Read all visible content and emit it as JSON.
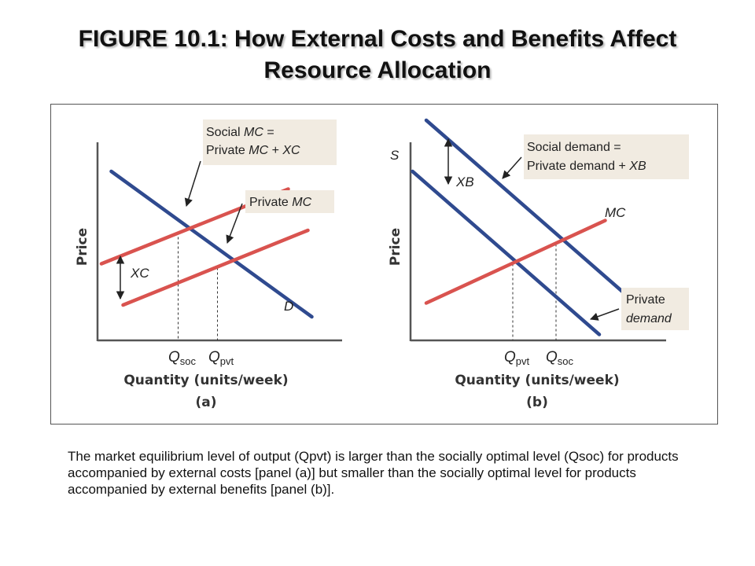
{
  "title": {
    "line1": "FIGURE 10.1: How External Costs and Benefits Affect",
    "line2": "Resource Allocation"
  },
  "caption": "The market equilibrium level of output (Qpvt) is larger than the socially optimal level (Qsoc) for products accompanied by external costs [panel (a)] but smaller than the socially optimal level for products accompanied by external benefits [panel (b)].",
  "colors": {
    "demand_line": "#2f4a8f",
    "cost_line": "#d9534f",
    "label_box": "#f1ebe1",
    "axis": "#555555"
  },
  "chart_data": [
    {
      "type": "line",
      "panel": "(a)",
      "xlabel": "Quantity (units/week)",
      "ylabel": "Price",
      "axis_ticks": "none",
      "series": [
        {
          "name": "D",
          "color": "#2f4a8f",
          "x": [
            0.7,
            10.9
          ],
          "y": [
            8.6,
            1.2
          ]
        },
        {
          "name": "Private MC",
          "color": "#d9534f",
          "x": [
            1.3,
            10.7
          ],
          "y": [
            1.8,
            5.6
          ]
        },
        {
          "name": "Social MC = Private MC + XC",
          "color": "#d9534f",
          "x": [
            0.2,
            9.7
          ],
          "y": [
            3.9,
            7.7
          ]
        }
      ],
      "equilibria": [
        {
          "label_main": "Q",
          "label_sub": "soc",
          "x": 4.1,
          "y": 5.5
        },
        {
          "label_main": "Q",
          "label_sub": "pvt",
          "x": 6.1,
          "y": 3.7
        }
      ],
      "annotations": {
        "social_mc_line1_pre": "Social ",
        "social_mc_line1_it": "MC",
        "social_mc_line1_post": " =",
        "social_mc_line2_pre": "Private ",
        "social_mc_line2_it": "MC",
        "social_mc_line2_mid": " + ",
        "social_mc_line2_it2": "XC",
        "private_mc_pre": "Private ",
        "private_mc_it": "MC",
        "gap": "XC",
        "demand": "D"
      }
    },
    {
      "type": "line",
      "panel": "(b)",
      "xlabel": "Quantity (units/week)",
      "ylabel": "Price",
      "axis_ticks": "none",
      "series": [
        {
          "name": "S",
          "color": "#2f4a8f",
          "x": [
            0.1,
            9.6
          ],
          "y": [
            8.6,
            0.3
          ]
        },
        {
          "name": "Social demand = Private demand + XB",
          "color": "#2f4a8f",
          "x": [
            0.8,
            11.1
          ],
          "y": [
            11.2,
            2.2
          ]
        },
        {
          "name": "MC",
          "color": "#d9534f",
          "x": [
            0.8,
            9.9
          ],
          "y": [
            1.9,
            6.1
          ]
        }
      ],
      "equilibria": [
        {
          "label_main": "Q",
          "label_sub": "pvt",
          "x": 5.2,
          "y": 3.9
        },
        {
          "label_main": "Q",
          "label_sub": "soc",
          "x": 7.4,
          "y": 4.9
        }
      ],
      "annotations": {
        "social_demand_line1": "Social demand =",
        "social_demand_line2_pre": "Private demand + ",
        "social_demand_line2_it": "XB",
        "private_demand_line1": "Private",
        "private_demand_line2": "demand",
        "gap": "XB",
        "supply": "S",
        "mc": "MC"
      }
    }
  ]
}
